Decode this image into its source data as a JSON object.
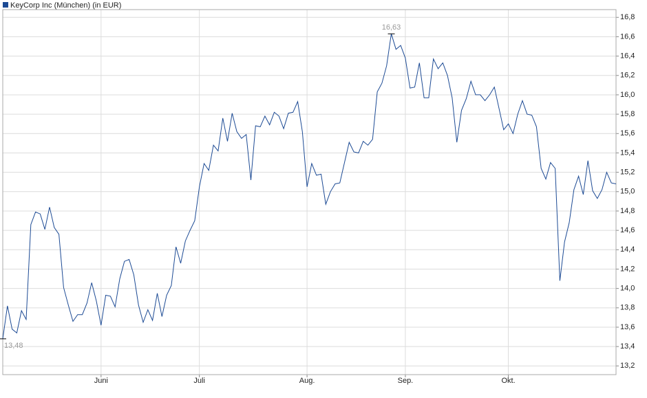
{
  "chart_data": {
    "type": "line",
    "legend": "top-left",
    "grid": true,
    "series": [
      {
        "name": "KeyCorp Inc (München) (in EUR)",
        "color": "#1c4a94",
        "values": [
          13.48,
          13.82,
          13.58,
          13.54,
          13.77,
          13.68,
          14.66,
          14.79,
          14.77,
          14.61,
          14.84,
          14.63,
          14.56,
          14.01,
          13.83,
          13.66,
          13.73,
          13.73,
          13.85,
          14.06,
          13.87,
          13.62,
          13.93,
          13.92,
          13.81,
          14.1,
          14.28,
          14.3,
          14.14,
          13.83,
          13.65,
          13.78,
          13.67,
          13.95,
          13.71,
          13.93,
          14.03,
          14.43,
          14.26,
          14.49,
          14.6,
          14.7,
          15.05,
          15.29,
          15.22,
          15.48,
          15.42,
          15.76,
          15.52,
          15.81,
          15.62,
          15.55,
          15.59,
          15.12,
          15.68,
          15.67,
          15.78,
          15.69,
          15.82,
          15.78,
          15.65,
          15.81,
          15.82,
          15.93,
          15.62,
          15.05,
          15.29,
          15.17,
          15.18,
          14.87,
          15.0,
          15.08,
          15.09,
          15.3,
          15.51,
          15.41,
          15.4,
          15.52,
          15.48,
          15.54,
          16.03,
          16.12,
          16.3,
          16.63,
          16.47,
          16.51,
          16.38,
          16.07,
          16.08,
          16.33,
          15.97,
          15.97,
          16.37,
          16.27,
          16.33,
          16.2,
          15.97,
          15.51,
          15.84,
          15.96,
          16.14,
          16.0,
          16.0,
          15.94,
          16.0,
          16.08,
          15.86,
          15.64,
          15.7,
          15.6,
          15.8,
          15.94,
          15.8,
          15.79,
          15.67,
          15.24,
          15.13,
          15.3,
          15.24,
          14.08,
          14.48,
          14.68,
          15.02,
          15.16,
          14.97,
          15.32,
          15.01,
          14.93,
          15.02,
          15.2,
          15.09,
          15.08
        ]
      }
    ],
    "categories": [
      null,
      null,
      null,
      null,
      null,
      null,
      null,
      null,
      null,
      null,
      null,
      null,
      null,
      null,
      null,
      null,
      null,
      null,
      null,
      null,
      null,
      "Juni",
      null,
      null,
      null,
      null,
      null,
      null,
      null,
      null,
      null,
      null,
      null,
      null,
      null,
      null,
      null,
      null,
      null,
      null,
      null,
      null,
      "Juli",
      null,
      null,
      null,
      null,
      null,
      null,
      null,
      null,
      null,
      null,
      null,
      null,
      null,
      null,
      null,
      null,
      null,
      null,
      null,
      null,
      null,
      null,
      "Aug.",
      null,
      null,
      null,
      null,
      null,
      null,
      null,
      null,
      null,
      null,
      null,
      null,
      null,
      null,
      null,
      null,
      null,
      null,
      null,
      null,
      "Sep.",
      null,
      null,
      null,
      null,
      null,
      null,
      null,
      null,
      null,
      null,
      null,
      null,
      null,
      null,
      null,
      null,
      null,
      null,
      null,
      null,
      null,
      "Okt.",
      null,
      null,
      null,
      null,
      null,
      null,
      null,
      null,
      null,
      null,
      null,
      null,
      null,
      null,
      null,
      null,
      null,
      null,
      null,
      null,
      null,
      null,
      null
    ],
    "annotations": [
      {
        "value": 13.48,
        "label": "13,48"
      },
      {
        "value": 16.63,
        "label": "16,63"
      }
    ],
    "ylim": [
      13.11,
      16.88
    ],
    "yticks": [
      {
        "value": 13.2,
        "label": "13,2"
      },
      {
        "value": 13.4,
        "label": "13,4"
      },
      {
        "value": 13.6,
        "label": "13,6"
      },
      {
        "value": 13.8,
        "label": "13,8"
      },
      {
        "value": 14.0,
        "label": "14,0"
      },
      {
        "value": 14.2,
        "label": "14,2"
      },
      {
        "value": 14.4,
        "label": "14,4"
      },
      {
        "value": 14.6,
        "label": "14,6"
      },
      {
        "value": 14.8,
        "label": "14,8"
      },
      {
        "value": 15.0,
        "label": "15,0"
      },
      {
        "value": 15.2,
        "label": "15,2"
      },
      {
        "value": 15.4,
        "label": "15,4"
      },
      {
        "value": 15.6,
        "label": "15,6"
      },
      {
        "value": 15.8,
        "label": "15,8"
      },
      {
        "value": 16.0,
        "label": "16,0"
      },
      {
        "value": 16.2,
        "label": "16,2"
      },
      {
        "value": 16.4,
        "label": "16,4"
      },
      {
        "value": 16.6,
        "label": "16,6"
      },
      {
        "value": 16.8,
        "label": "16,8"
      }
    ]
  }
}
